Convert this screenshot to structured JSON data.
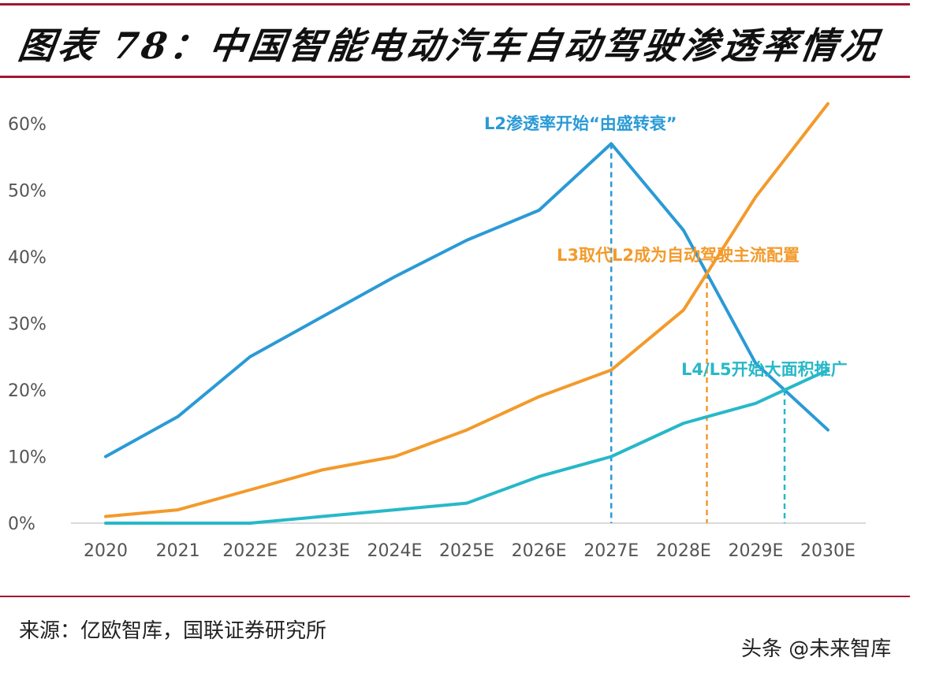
{
  "title": "图表 78：中国智能电动汽车自动驾驶渗透率情况",
  "source": "来源：亿欧智库，国联证券研究所",
  "watermark": "头条 @未来智库",
  "colors": {
    "rule": "#a3162e",
    "l2": "#2a9ad6",
    "l3": "#f39a2b",
    "l45": "#27b8c8",
    "axis": "#d9d9d9"
  },
  "chart_data": {
    "type": "line",
    "title": "",
    "xlabel": "",
    "ylabel": "",
    "categories": [
      "2020",
      "2021",
      "2022E",
      "2023E",
      "2024E",
      "2025E",
      "2026E",
      "2027E",
      "2028E",
      "2029E",
      "2030E"
    ],
    "ylim": [
      0,
      60
    ],
    "yticks": [
      0,
      10,
      20,
      30,
      40,
      50,
      60
    ],
    "ytick_labels": [
      "0%",
      "10%",
      "20%",
      "30%",
      "40%",
      "50%",
      "60%"
    ],
    "grid": false,
    "series": [
      {
        "values": [
          10,
          16,
          25,
          31,
          37,
          42.5,
          47,
          57,
          44,
          24,
          14
        ],
        "color": "#2a9ad6"
      },
      {
        "values": [
          1,
          2,
          5,
          8,
          10,
          14,
          19,
          23,
          32,
          49,
          63
        ],
        "color": "#f39a2b"
      },
      {
        "values": [
          0,
          0,
          0,
          1,
          2,
          3,
          7,
          10,
          15,
          18,
          23
        ],
        "color": "#27b8c8"
      }
    ],
    "annotations": [
      {
        "text": "L2渗透率开始“由盛转衰”",
        "color": "#2a9ad6"
      },
      {
        "text": "L3取代L2成为自动驾驶主流配置",
        "color": "#f39a2b"
      },
      {
        "text": "L4/L5开始大面积推广",
        "color": "#27b8c8"
      }
    ]
  }
}
